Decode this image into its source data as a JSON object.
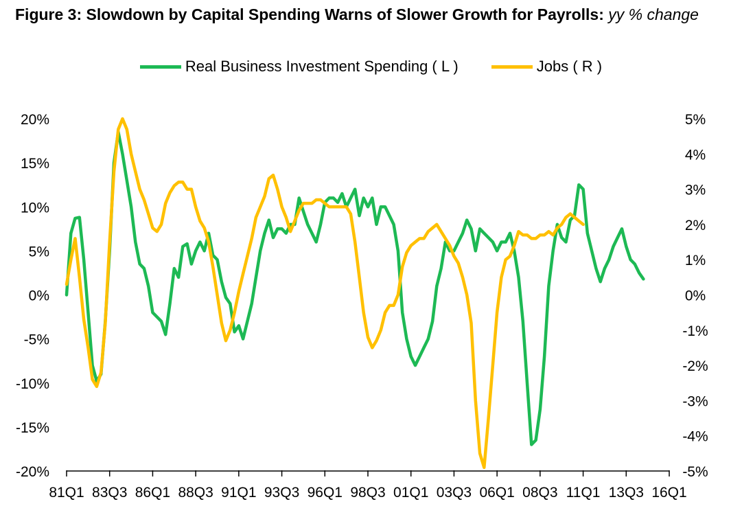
{
  "chart_data": {
    "type": "line",
    "title": "Figure 3: Slowdown by Capital Spending Warns of Slower Growth for Payrolls:",
    "subtitle": "yy % change",
    "legend_position": "top-center",
    "x_tick_labels": [
      "81Q1",
      "83Q3",
      "86Q1",
      "88Q3",
      "91Q1",
      "93Q3",
      "96Q1",
      "98Q3",
      "01Q1",
      "03Q3",
      "06Q1",
      "08Q3",
      "11Q1",
      "13Q3",
      "16Q1"
    ],
    "x_range_quarters": [
      0,
      140
    ],
    "y_left": {
      "ticks": [
        "20%",
        "15%",
        "10%",
        "5%",
        "0%",
        "-5%",
        "-10%",
        "-15%",
        "-20%"
      ],
      "range": [
        -20,
        20
      ]
    },
    "y_right": {
      "ticks": [
        "5%",
        "4%",
        "3%",
        "2%",
        "1%",
        "0%",
        "-1%",
        "-2%",
        "-3%",
        "-4%",
        "-5%"
      ],
      "range": [
        -5,
        5
      ]
    },
    "series": [
      {
        "name": "Real Business Investment Spending ( L )",
        "axis": "left",
        "color": "#1db954",
        "points": [
          [
            0,
            0
          ],
          [
            1,
            7
          ],
          [
            2,
            8.7
          ],
          [
            3,
            8.8
          ],
          [
            4,
            4
          ],
          [
            5,
            -2
          ],
          [
            6,
            -8
          ],
          [
            7,
            -9.8
          ],
          [
            8,
            -9
          ],
          [
            9,
            -3
          ],
          [
            10,
            5
          ],
          [
            11,
            15
          ],
          [
            12,
            18.5
          ],
          [
            13,
            16
          ],
          [
            14,
            13
          ],
          [
            15,
            10
          ],
          [
            16,
            6
          ],
          [
            17,
            3.5
          ],
          [
            18,
            3
          ],
          [
            19,
            1
          ],
          [
            20,
            -2
          ],
          [
            21,
            -2.5
          ],
          [
            22,
            -3
          ],
          [
            23,
            -4.5
          ],
          [
            24,
            -1
          ],
          [
            25,
            3
          ],
          [
            26,
            2
          ],
          [
            27,
            5.5
          ],
          [
            28,
            5.8
          ],
          [
            29,
            3.5
          ],
          [
            30,
            5
          ],
          [
            31,
            6
          ],
          [
            32,
            5
          ],
          [
            33,
            7
          ],
          [
            34,
            4.5
          ],
          [
            35,
            4
          ],
          [
            36,
            1.5
          ],
          [
            37,
            -0.3
          ],
          [
            38,
            -1
          ],
          [
            39,
            -4.2
          ],
          [
            40,
            -3.5
          ],
          [
            41,
            -5
          ],
          [
            42,
            -3
          ],
          [
            43,
            -1
          ],
          [
            44,
            2
          ],
          [
            45,
            5
          ],
          [
            46,
            7
          ],
          [
            47,
            8.5
          ],
          [
            48,
            6.5
          ],
          [
            49,
            7.5
          ],
          [
            50,
            7.5
          ],
          [
            51,
            7
          ],
          [
            52,
            8
          ],
          [
            53,
            8
          ],
          [
            54,
            11
          ],
          [
            55,
            9.5
          ],
          [
            56,
            8
          ],
          [
            57,
            7
          ],
          [
            58,
            6
          ],
          [
            59,
            8
          ],
          [
            60,
            10.5
          ],
          [
            61,
            11
          ],
          [
            62,
            11
          ],
          [
            63,
            10.5
          ],
          [
            64,
            11.5
          ],
          [
            65,
            10
          ],
          [
            66,
            11
          ],
          [
            67,
            12
          ],
          [
            68,
            9
          ],
          [
            69,
            11
          ],
          [
            70,
            10
          ],
          [
            71,
            11
          ],
          [
            72,
            8
          ],
          [
            73,
            10
          ],
          [
            74,
            10
          ],
          [
            75,
            9
          ],
          [
            76,
            8
          ],
          [
            77,
            5
          ],
          [
            78,
            -2
          ],
          [
            79,
            -5
          ],
          [
            80,
            -7
          ],
          [
            81,
            -8
          ],
          [
            82,
            -7
          ],
          [
            83,
            -6
          ],
          [
            84,
            -5
          ],
          [
            85,
            -3
          ],
          [
            86,
            1
          ],
          [
            87,
            3
          ],
          [
            88,
            6
          ],
          [
            89,
            5
          ],
          [
            90,
            5
          ],
          [
            91,
            6
          ],
          [
            92,
            7
          ],
          [
            93,
            8.5
          ],
          [
            94,
            7.5
          ],
          [
            95,
            5
          ],
          [
            96,
            7.5
          ],
          [
            97,
            7
          ],
          [
            98,
            6.5
          ],
          [
            99,
            6
          ],
          [
            100,
            5
          ],
          [
            101,
            6
          ],
          [
            102,
            6
          ],
          [
            103,
            7
          ],
          [
            104,
            5
          ],
          [
            105,
            2
          ],
          [
            106,
            -3
          ],
          [
            107,
            -10
          ],
          [
            108,
            -17
          ],
          [
            109,
            -16.5
          ],
          [
            110,
            -13
          ],
          [
            111,
            -7
          ],
          [
            112,
            1
          ],
          [
            113,
            5
          ],
          [
            114,
            8
          ],
          [
            115,
            6.5
          ],
          [
            116,
            6
          ],
          [
            117,
            8.5
          ],
          [
            118,
            9
          ],
          [
            119,
            12.5
          ],
          [
            120,
            12
          ],
          [
            121,
            7
          ],
          [
            122,
            5
          ],
          [
            123,
            3
          ],
          [
            124,
            1.5
          ],
          [
            125,
            3
          ],
          [
            126,
            4
          ],
          [
            127,
            5.5
          ],
          [
            128,
            6.5
          ],
          [
            129,
            7.5
          ],
          [
            130,
            5.5
          ],
          [
            131,
            4
          ],
          [
            132,
            3.5
          ],
          [
            133,
            2.5
          ],
          [
            134,
            1.8
          ]
        ]
      },
      {
        "name": "Jobs ( R )",
        "axis": "right",
        "color": "#ffc000",
        "points": [
          [
            0,
            0.3
          ],
          [
            1,
            1
          ],
          [
            2,
            1.6
          ],
          [
            3,
            0.5
          ],
          [
            4,
            -0.7
          ],
          [
            5,
            -1.5
          ],
          [
            6,
            -2.4
          ],
          [
            7,
            -2.6
          ],
          [
            8,
            -2.2
          ],
          [
            9,
            -0.8
          ],
          [
            10,
            1.5
          ],
          [
            11,
            3.5
          ],
          [
            12,
            4.7
          ],
          [
            13,
            5
          ],
          [
            14,
            4.7
          ],
          [
            15,
            4
          ],
          [
            16,
            3.5
          ],
          [
            17,
            3
          ],
          [
            18,
            2.7
          ],
          [
            19,
            2.3
          ],
          [
            20,
            1.9
          ],
          [
            21,
            1.8
          ],
          [
            22,
            2
          ],
          [
            23,
            2.6
          ],
          [
            24,
            2.9
          ],
          [
            25,
            3.1
          ],
          [
            26,
            3.2
          ],
          [
            27,
            3.2
          ],
          [
            28,
            3
          ],
          [
            29,
            3
          ],
          [
            30,
            2.5
          ],
          [
            31,
            2.1
          ],
          [
            32,
            1.9
          ],
          [
            33,
            1.5
          ],
          [
            34,
            0.8
          ],
          [
            35,
            0
          ],
          [
            36,
            -0.8
          ],
          [
            37,
            -1.3
          ],
          [
            38,
            -1
          ],
          [
            39,
            -0.5
          ],
          [
            40,
            0.1
          ],
          [
            41,
            0.6
          ],
          [
            42,
            1.1
          ],
          [
            43,
            1.6
          ],
          [
            44,
            2.2
          ],
          [
            45,
            2.5
          ],
          [
            46,
            2.8
          ],
          [
            47,
            3.3
          ],
          [
            48,
            3.4
          ],
          [
            49,
            3
          ],
          [
            50,
            2.5
          ],
          [
            51,
            2.2
          ],
          [
            52,
            1.8
          ],
          [
            53,
            2.1
          ],
          [
            54,
            2.4
          ],
          [
            55,
            2.6
          ],
          [
            56,
            2.6
          ],
          [
            57,
            2.6
          ],
          [
            58,
            2.7
          ],
          [
            59,
            2.7
          ],
          [
            60,
            2.6
          ],
          [
            61,
            2.5
          ],
          [
            62,
            2.5
          ],
          [
            63,
            2.5
          ],
          [
            64,
            2.5
          ],
          [
            65,
            2.5
          ],
          [
            66,
            2.3
          ],
          [
            67,
            1.5
          ],
          [
            68,
            0.5
          ],
          [
            69,
            -0.5
          ],
          [
            70,
            -1.2
          ],
          [
            71,
            -1.5
          ],
          [
            72,
            -1.3
          ],
          [
            73,
            -1
          ],
          [
            74,
            -0.5
          ],
          [
            75,
            -0.3
          ],
          [
            76,
            -0.3
          ],
          [
            77,
            0
          ],
          [
            78,
            0.8
          ],
          [
            79,
            1.2
          ],
          [
            80,
            1.4
          ],
          [
            81,
            1.5
          ],
          [
            82,
            1.6
          ],
          [
            83,
            1.6
          ],
          [
            84,
            1.8
          ],
          [
            85,
            1.9
          ],
          [
            86,
            2
          ],
          [
            87,
            1.8
          ],
          [
            88,
            1.6
          ],
          [
            89,
            1.4
          ],
          [
            90,
            1.1
          ],
          [
            91,
            0.9
          ],
          [
            92,
            0.5
          ],
          [
            93,
            0
          ],
          [
            94,
            -0.8
          ],
          [
            95,
            -3
          ],
          [
            96,
            -4.5
          ],
          [
            97,
            -4.9
          ],
          [
            98,
            -3.5
          ],
          [
            99,
            -2
          ],
          [
            100,
            -0.5
          ],
          [
            101,
            0.5
          ],
          [
            102,
            1
          ],
          [
            103,
            1.1
          ],
          [
            104,
            1.4
          ],
          [
            105,
            1.8
          ],
          [
            106,
            1.7
          ],
          [
            107,
            1.7
          ],
          [
            108,
            1.6
          ],
          [
            109,
            1.6
          ],
          [
            110,
            1.7
          ],
          [
            111,
            1.7
          ],
          [
            112,
            1.8
          ],
          [
            113,
            1.7
          ],
          [
            114,
            1.9
          ],
          [
            115,
            2
          ],
          [
            116,
            2.2
          ],
          [
            117,
            2.3
          ],
          [
            118,
            2.2
          ],
          [
            119,
            2.1
          ],
          [
            120,
            2
          ]
        ]
      }
    ]
  }
}
